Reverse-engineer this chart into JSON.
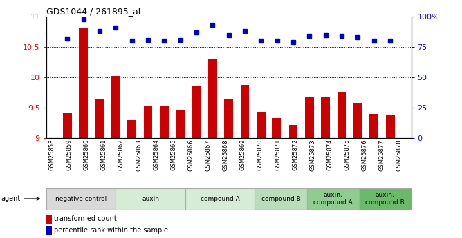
{
  "title": "GDS1044 / 261895_at",
  "samples": [
    "GSM25858",
    "GSM25859",
    "GSM25860",
    "GSM25861",
    "GSM25862",
    "GSM25863",
    "GSM25864",
    "GSM25865",
    "GSM25866",
    "GSM25867",
    "GSM25868",
    "GSM25869",
    "GSM25870",
    "GSM25871",
    "GSM25872",
    "GSM25873",
    "GSM25874",
    "GSM25875",
    "GSM25876",
    "GSM25877",
    "GSM25878"
  ],
  "bar_values": [
    9.41,
    10.82,
    9.65,
    10.02,
    9.3,
    9.53,
    9.53,
    9.47,
    9.86,
    10.3,
    9.64,
    9.88,
    9.43,
    9.33,
    9.22,
    9.68,
    9.67,
    9.76,
    9.58,
    9.4,
    9.39
  ],
  "dot_values": [
    82,
    98,
    88,
    91,
    80,
    81,
    80,
    81,
    87,
    93,
    85,
    88,
    80,
    80,
    79,
    84,
    85,
    84,
    83,
    80,
    80
  ],
  "ymin": 9,
  "ymax": 11,
  "ylim_left": [
    9,
    11
  ],
  "ylim_right": [
    0,
    100
  ],
  "yticks_left": [
    9,
    9.5,
    10,
    10.5,
    11
  ],
  "yticks_right": [
    0,
    25,
    50,
    75,
    100
  ],
  "bar_color": "#cc0000",
  "dot_color": "#0000cc",
  "agent_groups": [
    {
      "label": "negative control",
      "start": 0,
      "end": 4,
      "color": "#d9d9d9"
    },
    {
      "label": "auxin",
      "start": 4,
      "end": 8,
      "color": "#d6ecd6"
    },
    {
      "label": "compound A",
      "start": 8,
      "end": 12,
      "color": "#d6ecd6"
    },
    {
      "label": "compound B",
      "start": 12,
      "end": 15,
      "color": "#b8ddb8"
    },
    {
      "label": "auxin,\ncompound A",
      "start": 15,
      "end": 18,
      "color": "#8fcc8f"
    },
    {
      "label": "auxin,\ncompound B",
      "start": 18,
      "end": 21,
      "color": "#6aba6a"
    }
  ],
  "legend_bar_label": "transformed count",
  "legend_dot_label": "percentile rank within the sample",
  "xlabel": "agent",
  "gridlines": [
    9.5,
    10.0,
    10.5
  ]
}
